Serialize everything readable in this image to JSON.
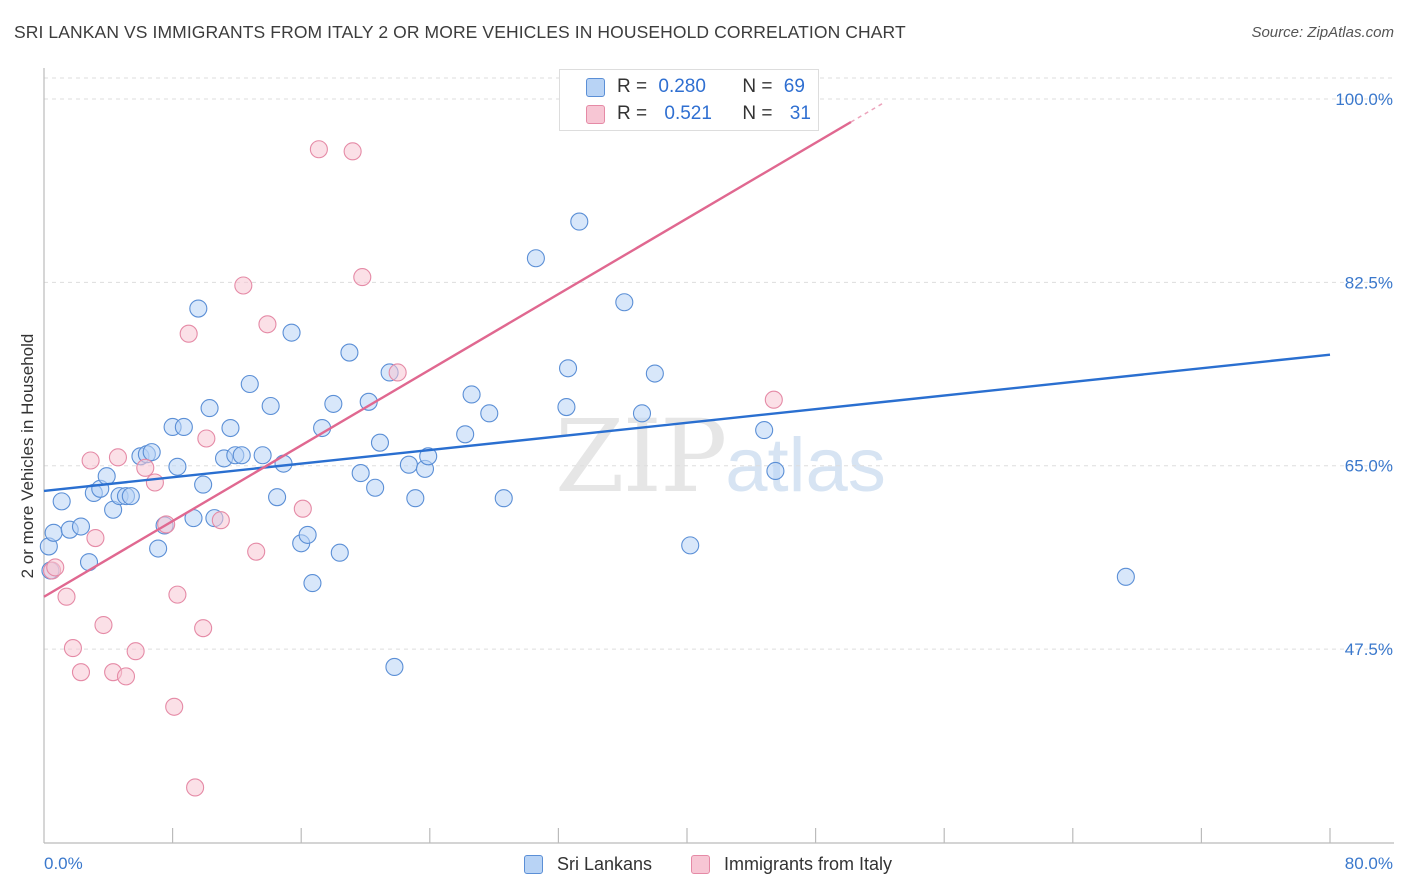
{
  "title": "SRI LANKAN VS IMMIGRANTS FROM ITALY 2 OR MORE VEHICLES IN HOUSEHOLD CORRELATION CHART",
  "source": "Source: ZipAtlas.com",
  "watermark": {
    "zip": "ZIP",
    "atlas": "atlas"
  },
  "colors": {
    "blue_fill": "#b8d3f5",
    "blue_stroke": "#5b8fd6",
    "blue_line": "#2a6fd0",
    "pink_fill": "#f7c6d4",
    "pink_stroke": "#e58aa6",
    "pink_line": "#e06890",
    "axis_text": "#3a78cc",
    "grid": "#dddddd"
  },
  "legend": {
    "rows": [
      {
        "r_label": "R =",
        "r_value": "0.280",
        "n_label": "N =",
        "n_value": "69"
      },
      {
        "r_label": "R =",
        "r_value": "0.521",
        "n_label": "N =",
        "n_value": "31"
      }
    ]
  },
  "bottom_legend": {
    "series1": "Sri Lankans",
    "series2": "Immigrants from Italy"
  },
  "chart_data": {
    "type": "scatter",
    "xlabel": "",
    "ylabel": "2 or more Vehicles in Household",
    "xlim": [
      0,
      80
    ],
    "ylim": [
      29,
      102
    ],
    "x_tick_labels": [
      "0.0%",
      "80.0%"
    ],
    "y_ticks": [
      47.5,
      65.0,
      82.5,
      100.0
    ],
    "y_tick_labels": [
      "47.5%",
      "65.0%",
      "82.5%",
      "100.0%"
    ],
    "series": [
      {
        "name": "Sri Lankans",
        "trend": {
          "x": [
            0,
            80
          ],
          "y": [
            62.6,
            75.6
          ]
        },
        "points": [
          [
            0.3,
            57.3
          ],
          [
            0.6,
            58.6
          ],
          [
            1.1,
            61.6
          ],
          [
            1.6,
            58.9
          ],
          [
            2.3,
            59.2
          ],
          [
            2.8,
            55.8
          ],
          [
            3.1,
            62.4
          ],
          [
            3.5,
            62.8
          ],
          [
            3.9,
            64.0
          ],
          [
            4.3,
            60.8
          ],
          [
            4.7,
            62.1
          ],
          [
            5.1,
            62.1
          ],
          [
            5.4,
            62.1
          ],
          [
            6.0,
            65.9
          ],
          [
            6.4,
            66.1
          ],
          [
            6.7,
            66.3
          ],
          [
            7.1,
            57.1
          ],
          [
            7.5,
            59.3
          ],
          [
            8.0,
            68.7
          ],
          [
            8.3,
            64.9
          ],
          [
            8.7,
            68.7
          ],
          [
            9.3,
            60.0
          ],
          [
            9.6,
            80.0
          ],
          [
            9.9,
            63.2
          ],
          [
            10.3,
            70.5
          ],
          [
            10.6,
            60.0
          ],
          [
            11.2,
            65.7
          ],
          [
            11.6,
            68.6
          ],
          [
            11.9,
            66.0
          ],
          [
            12.3,
            66.0
          ],
          [
            12.8,
            72.8
          ],
          [
            13.6,
            66.0
          ],
          [
            14.1,
            70.7
          ],
          [
            14.5,
            62.0
          ],
          [
            14.9,
            65.2
          ],
          [
            15.4,
            77.7
          ],
          [
            16.0,
            57.6
          ],
          [
            16.4,
            58.4
          ],
          [
            16.7,
            53.8
          ],
          [
            17.3,
            68.6
          ],
          [
            18.0,
            70.9
          ],
          [
            18.4,
            56.7
          ],
          [
            19.0,
            75.8
          ],
          [
            19.7,
            64.3
          ],
          [
            20.2,
            71.1
          ],
          [
            20.6,
            62.9
          ],
          [
            20.9,
            67.2
          ],
          [
            21.5,
            73.9
          ],
          [
            21.8,
            45.8
          ],
          [
            22.7,
            65.1
          ],
          [
            23.1,
            61.9
          ],
          [
            23.7,
            64.7
          ],
          [
            23.9,
            65.9
          ],
          [
            26.2,
            68.0
          ],
          [
            26.6,
            71.8
          ],
          [
            27.7,
            70.0
          ],
          [
            28.6,
            61.9
          ],
          [
            30.6,
            84.8
          ],
          [
            32.5,
            70.6
          ],
          [
            32.6,
            74.3
          ],
          [
            33.3,
            88.3
          ],
          [
            36.1,
            80.6
          ],
          [
            37.2,
            70.0
          ],
          [
            38.0,
            73.8
          ],
          [
            40.2,
            57.4
          ],
          [
            44.8,
            68.4
          ],
          [
            45.5,
            64.5
          ],
          [
            67.3,
            54.4
          ],
          [
            0.4,
            55.0
          ]
        ]
      },
      {
        "name": "Immigrants from Italy",
        "trend": {
          "x": [
            0,
            50.2
          ],
          "y": [
            52.5,
            97.8
          ]
        },
        "trend_dashed": {
          "x": [
            50.2,
            52.2
          ],
          "y": [
            97.8,
            99.6
          ]
        },
        "points": [
          [
            0.5,
            55.0
          ],
          [
            0.7,
            55.3
          ],
          [
            1.4,
            52.5
          ],
          [
            1.8,
            47.6
          ],
          [
            2.3,
            45.3
          ],
          [
            2.9,
            65.5
          ],
          [
            3.2,
            58.1
          ],
          [
            3.7,
            49.8
          ],
          [
            4.3,
            45.3
          ],
          [
            4.6,
            65.8
          ],
          [
            5.1,
            44.9
          ],
          [
            5.7,
            47.3
          ],
          [
            6.3,
            64.8
          ],
          [
            6.9,
            63.4
          ],
          [
            7.6,
            59.4
          ],
          [
            8.1,
            42.0
          ],
          [
            8.3,
            52.7
          ],
          [
            9.0,
            77.6
          ],
          [
            9.4,
            34.3
          ],
          [
            9.9,
            49.5
          ],
          [
            10.1,
            67.6
          ],
          [
            11.0,
            59.8
          ],
          [
            12.4,
            82.2
          ],
          [
            13.2,
            56.8
          ],
          [
            13.9,
            78.5
          ],
          [
            16.1,
            60.9
          ],
          [
            17.1,
            95.2
          ],
          [
            19.2,
            95.0
          ],
          [
            19.8,
            83.0
          ],
          [
            22.0,
            73.9
          ],
          [
            45.4,
            71.3
          ]
        ]
      }
    ]
  }
}
